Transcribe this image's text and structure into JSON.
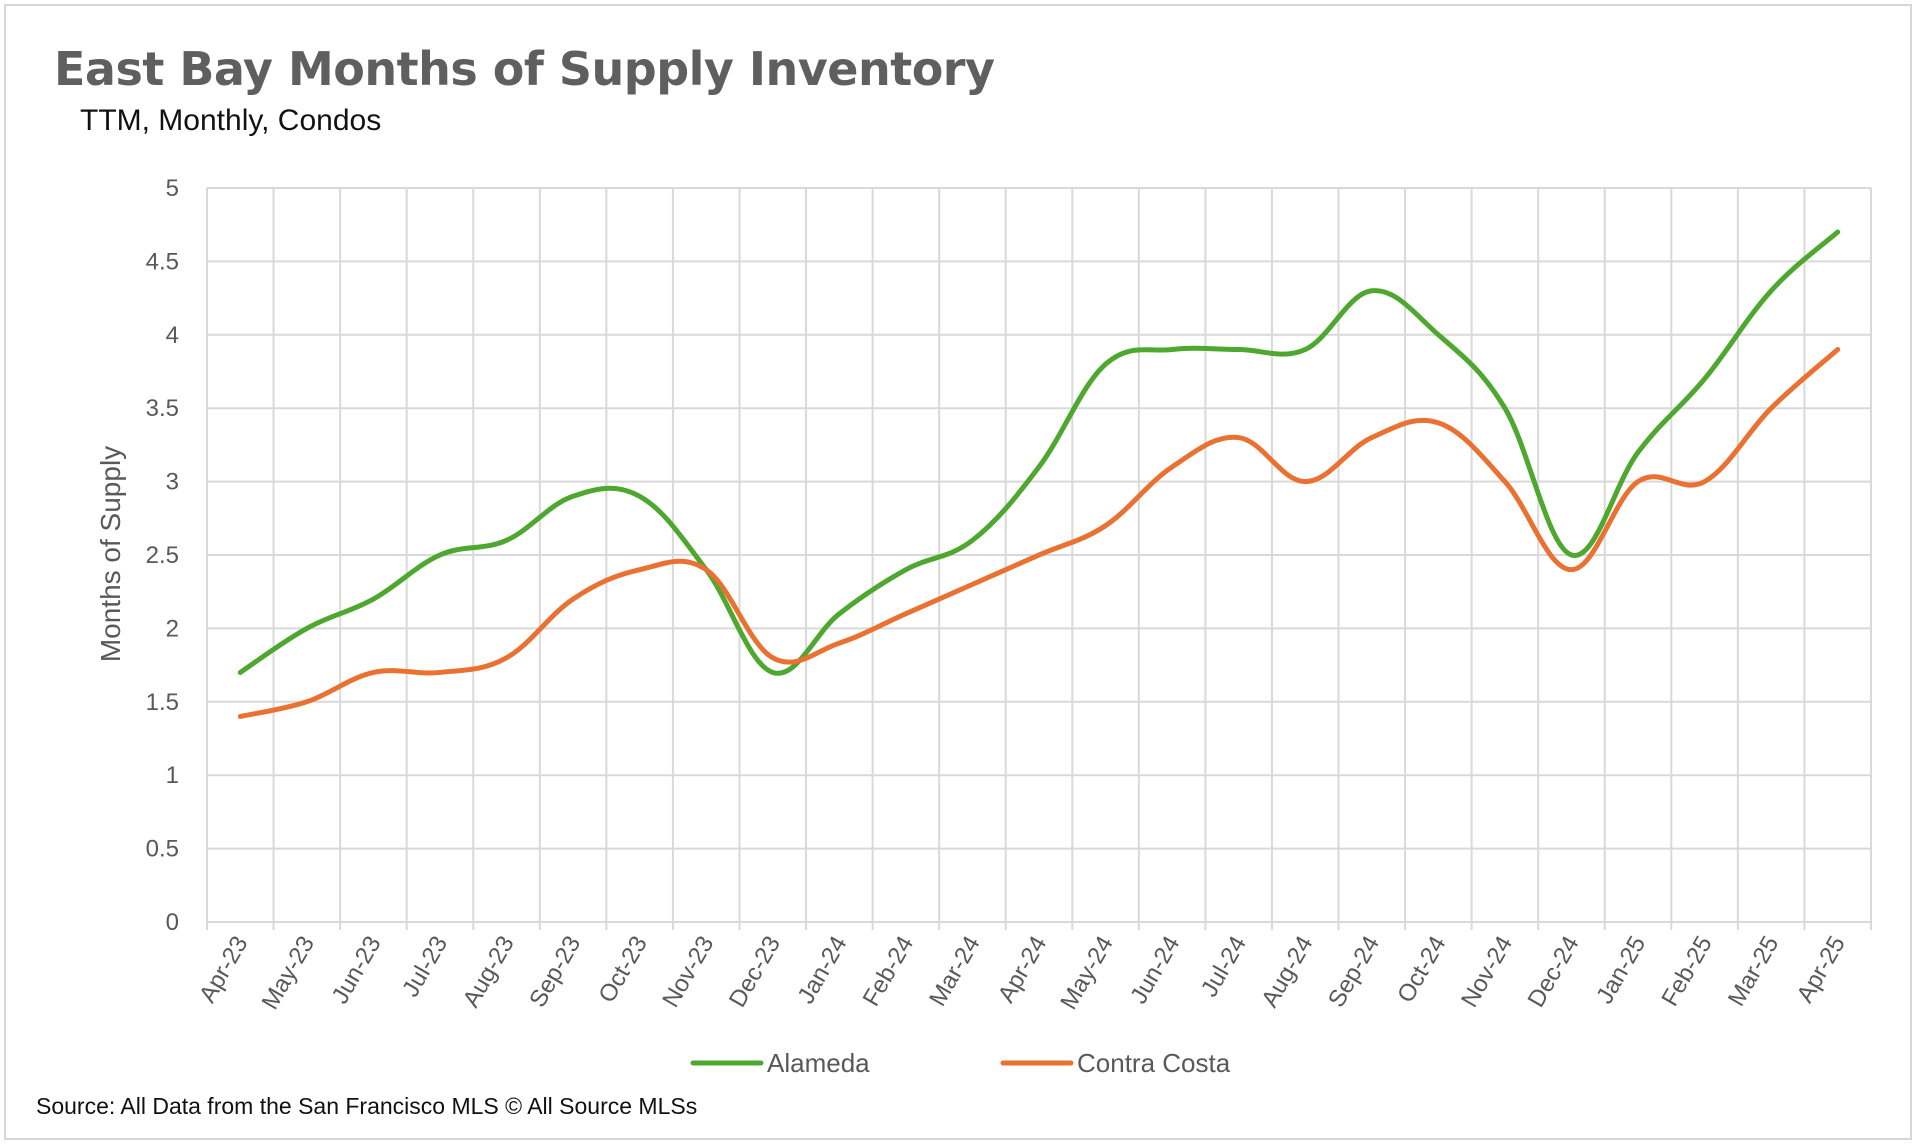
{
  "chart_data": {
    "type": "line",
    "title": "East Bay Months of Supply Inventory",
    "subtitle": "TTM, Monthly, Condos",
    "xlabel": "",
    "ylabel": "Months of Supply",
    "ylim": [
      0,
      5
    ],
    "yticks": [
      "0",
      "0.5",
      "1",
      "1.5",
      "2",
      "2.5",
      "3",
      "3.5",
      "4",
      "4.5",
      "5"
    ],
    "categories": [
      "Apr-23",
      "May-23",
      "Jun-23",
      "Jul-23",
      "Aug-23",
      "Sep-23",
      "Oct-23",
      "Nov-23",
      "Dec-23",
      "Jan-24",
      "Feb-24",
      "Mar-24",
      "Apr-24",
      "May-24",
      "Jun-24",
      "Jul-24",
      "Aug-24",
      "Sep-24",
      "Oct-24",
      "Nov-24",
      "Dec-24",
      "Jan-25",
      "Feb-25",
      "Mar-25",
      "Apr-25"
    ],
    "series": [
      {
        "name": "Alameda",
        "color": "#4EA72E",
        "values": [
          1.7,
          2.0,
          2.2,
          2.5,
          2.6,
          2.9,
          2.9,
          2.4,
          1.7,
          2.1,
          2.4,
          2.6,
          3.1,
          3.8,
          3.9,
          3.9,
          3.9,
          4.3,
          4.0,
          3.5,
          2.5,
          3.2,
          3.7,
          4.3,
          4.7
        ]
      },
      {
        "name": "Contra Costa",
        "color": "#E97132",
        "values": [
          1.4,
          1.5,
          1.7,
          1.7,
          1.8,
          2.2,
          2.4,
          2.4,
          1.8,
          1.9,
          2.1,
          2.3,
          2.5,
          2.7,
          3.1,
          3.3,
          3.0,
          3.3,
          3.4,
          3.0,
          2.4,
          3.0,
          3.0,
          3.5,
          3.9
        ]
      }
    ],
    "grid": true,
    "legend_position": "bottom",
    "source": "Source: All Data from the San Francisco MLS © All Source MLSs"
  }
}
